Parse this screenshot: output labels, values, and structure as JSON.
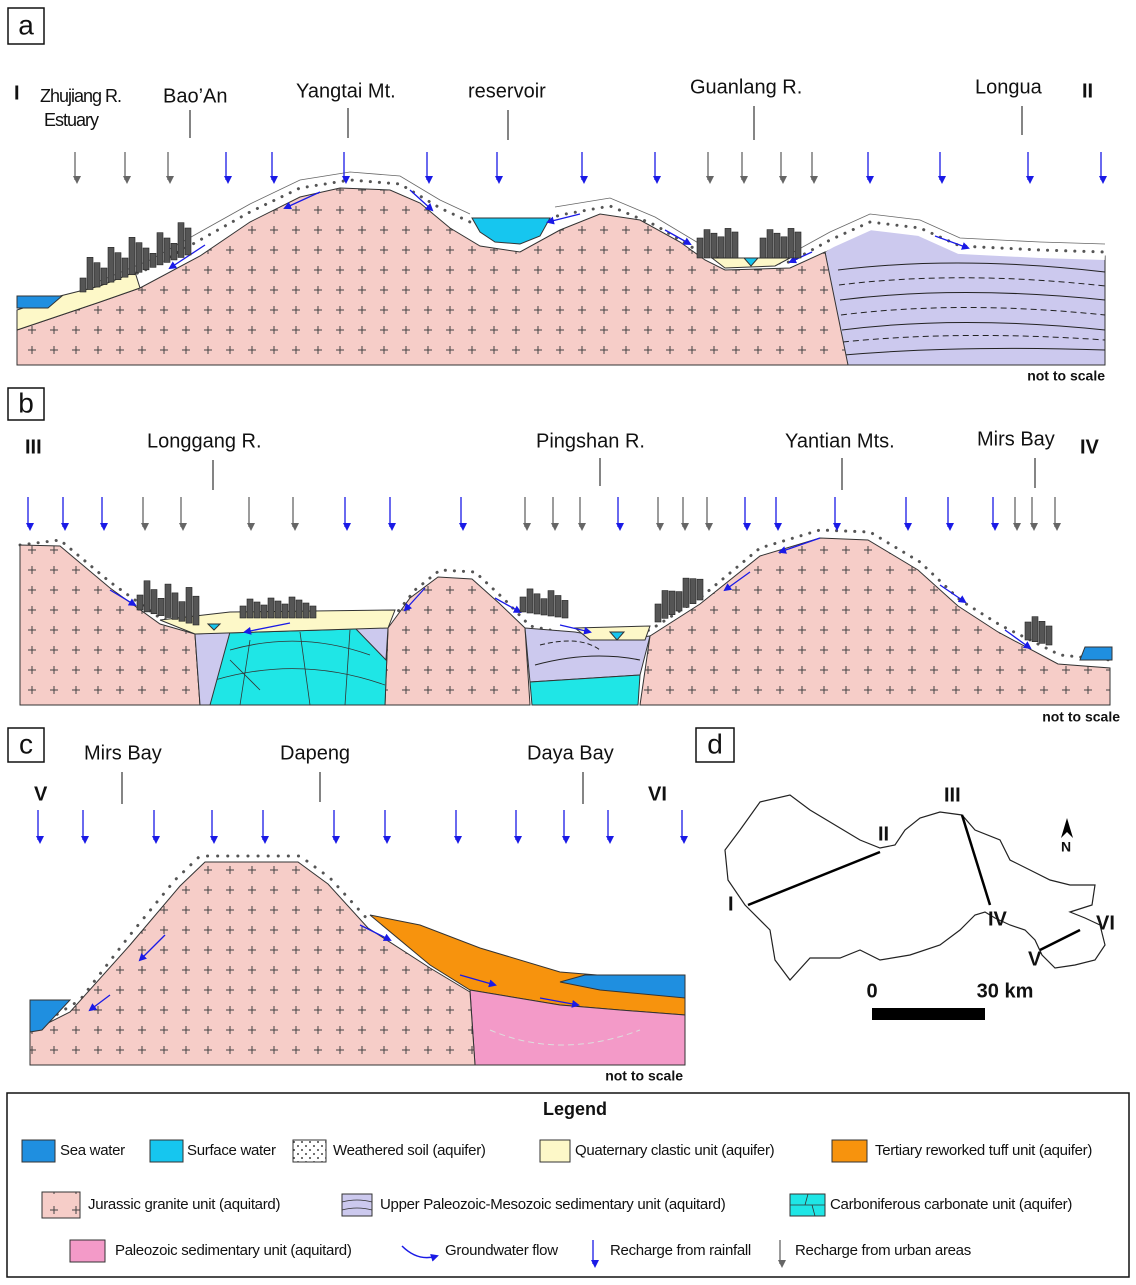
{
  "panels": [
    {
      "label": "a",
      "ends": [
        "I",
        "II"
      ],
      "places": [
        "Zhujiang R.",
        "Estuary",
        "Bao’An",
        "Yangtai Mt.",
        "reservoir",
        "Guanlang R.",
        "Longua"
      ],
      "note": "not to scale"
    },
    {
      "label": "b",
      "ends": [
        "III",
        "IV"
      ],
      "places": [
        "Longgang R.",
        "Pingshan R.",
        "Yantian Mts.",
        "Mirs Bay"
      ],
      "note": "not to scale"
    },
    {
      "label": "c",
      "ends": [
        "V",
        "VI"
      ],
      "places": [
        "Mirs Bay",
        "Dapeng",
        "Daya Bay"
      ],
      "note": "not to scale"
    },
    {
      "label": "d",
      "points": [
        "I",
        "II",
        "III",
        "IV",
        "V",
        "VI"
      ],
      "north": "N",
      "scale": [
        "0",
        "30 km"
      ]
    }
  ],
  "legend": {
    "title": "Legend",
    "items": [
      "Sea water",
      "Surface water",
      "Weathered soil (aquifer)",
      "Quaternary clastic  unit (aquifer)",
      "Tertiary reworked tuff unit (aquifer)",
      "Jurassic granite unit (aquitard)",
      "Upper Paleozoic-Mesozoic sedimentary unit (aquitard)",
      "Carboniferous carbonate unit (aquifer)",
      "Paleozoic sedimentary unit (aquitard)",
      "Groundwater flow",
      "Recharge from rainfall",
      "Recharge from urban areas"
    ]
  }
}
